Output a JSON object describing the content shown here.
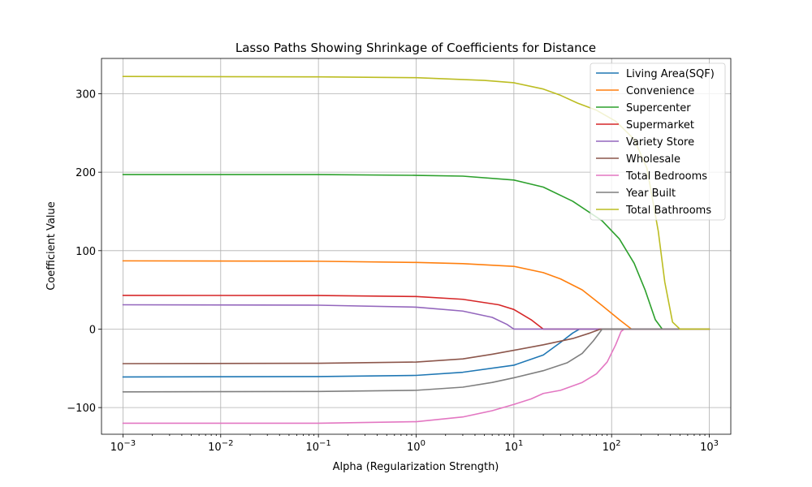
{
  "chart_data": {
    "type": "line",
    "title": "Lasso Paths Showing Shrinkage of Coefficients for Distance",
    "xlabel": "Alpha (Regularization Strength)",
    "ylabel": "Coefficient Value",
    "xscale": "log",
    "xlim": [
      0.000603,
      1658
    ],
    "ylim": [
      -134,
      345
    ],
    "grid": true,
    "legend_position": "top-right",
    "x_ticks": [
      {
        "value": 0.001,
        "base": "10",
        "exp": "−3"
      },
      {
        "value": 0.01,
        "base": "10",
        "exp": "−2"
      },
      {
        "value": 0.1,
        "base": "10",
        "exp": "−1"
      },
      {
        "value": 1,
        "base": "10",
        "exp": "0"
      },
      {
        "value": 10,
        "base": "10",
        "exp": "1"
      },
      {
        "value": 100,
        "base": "10",
        "exp": "2"
      },
      {
        "value": 1000,
        "base": "10",
        "exp": "3"
      }
    ],
    "y_ticks": [
      {
        "value": -100,
        "label": "−100"
      },
      {
        "value": 0,
        "label": "0"
      },
      {
        "value": 100,
        "label": "100"
      },
      {
        "value": 200,
        "label": "200"
      },
      {
        "value": 300,
        "label": "300"
      }
    ],
    "series": [
      {
        "name": "Living Area(SQF)",
        "color": "#1f77b4",
        "points": [
          [
            0.001,
            -61
          ],
          [
            0.1,
            -60.5
          ],
          [
            1,
            -59
          ],
          [
            3,
            -55
          ],
          [
            10,
            -46
          ],
          [
            20,
            -33
          ],
          [
            30,
            -17
          ],
          [
            40,
            -5
          ],
          [
            47,
            0
          ],
          [
            1000,
            0
          ]
        ]
      },
      {
        "name": "Convenience",
        "color": "#ff7f0e",
        "points": [
          [
            0.001,
            87
          ],
          [
            0.1,
            86.5
          ],
          [
            1,
            85
          ],
          [
            3,
            83.5
          ],
          [
            10,
            80
          ],
          [
            20,
            72
          ],
          [
            30,
            64
          ],
          [
            50,
            50
          ],
          [
            80,
            30
          ],
          [
            120,
            12
          ],
          [
            160,
            0
          ],
          [
            1000,
            0
          ]
        ]
      },
      {
        "name": "Supercenter",
        "color": "#2ca02c",
        "points": [
          [
            0.001,
            197
          ],
          [
            0.1,
            197
          ],
          [
            1,
            196
          ],
          [
            3,
            195
          ],
          [
            10,
            190
          ],
          [
            20,
            181
          ],
          [
            40,
            163
          ],
          [
            80,
            138
          ],
          [
            120,
            115
          ],
          [
            170,
            84
          ],
          [
            220,
            50
          ],
          [
            280,
            12
          ],
          [
            330,
            0
          ],
          [
            1000,
            0
          ]
        ]
      },
      {
        "name": "Supermarket",
        "color": "#d62728",
        "points": [
          [
            0.001,
            43
          ],
          [
            0.1,
            42.8
          ],
          [
            1,
            41.5
          ],
          [
            3,
            38
          ],
          [
            7,
            31
          ],
          [
            10,
            25
          ],
          [
            15,
            12
          ],
          [
            20,
            0
          ],
          [
            1000,
            0
          ]
        ]
      },
      {
        "name": "Variety Store",
        "color": "#9467bd",
        "points": [
          [
            0.001,
            31
          ],
          [
            0.1,
            30.5
          ],
          [
            1,
            28
          ],
          [
            3,
            23
          ],
          [
            6,
            15
          ],
          [
            8.5,
            6
          ],
          [
            10,
            0
          ],
          [
            1000,
            0
          ]
        ]
      },
      {
        "name": "Wholesale",
        "color": "#8c564b",
        "points": [
          [
            0.001,
            -44
          ],
          [
            0.1,
            -43.5
          ],
          [
            1,
            -42
          ],
          [
            3,
            -38
          ],
          [
            6,
            -32
          ],
          [
            10,
            -27
          ],
          [
            20,
            -20
          ],
          [
            40,
            -12
          ],
          [
            60,
            -5
          ],
          [
            75,
            -0.5
          ],
          [
            80,
            0
          ],
          [
            1000,
            0
          ]
        ]
      },
      {
        "name": "Total Bedrooms",
        "color": "#e377c2",
        "points": [
          [
            0.001,
            -120
          ],
          [
            0.1,
            -120
          ],
          [
            1,
            -118
          ],
          [
            3,
            -112
          ],
          [
            6,
            -104
          ],
          [
            10,
            -96
          ],
          [
            15,
            -89
          ],
          [
            20,
            -82
          ],
          [
            30,
            -78
          ],
          [
            50,
            -68
          ],
          [
            70,
            -57
          ],
          [
            90,
            -42
          ],
          [
            110,
            -20
          ],
          [
            125,
            -3
          ],
          [
            135,
            0
          ],
          [
            1000,
            0
          ]
        ]
      },
      {
        "name": "Year Built",
        "color": "#7f7f7f",
        "points": [
          [
            0.001,
            -80
          ],
          [
            0.1,
            -79.5
          ],
          [
            1,
            -78
          ],
          [
            3,
            -74
          ],
          [
            6,
            -68
          ],
          [
            10,
            -62
          ],
          [
            20,
            -53
          ],
          [
            35,
            -43
          ],
          [
            50,
            -31
          ],
          [
            65,
            -15
          ],
          [
            80,
            0
          ],
          [
            1000,
            0
          ]
        ]
      },
      {
        "name": "Total Bathrooms",
        "color": "#bcbd22",
        "points": [
          [
            0.001,
            322
          ],
          [
            0.1,
            321.5
          ],
          [
            1,
            320.5
          ],
          [
            5,
            317
          ],
          [
            10,
            314
          ],
          [
            20,
            306
          ],
          [
            30,
            298
          ],
          [
            45,
            288
          ],
          [
            70,
            279
          ],
          [
            110,
            265
          ],
          [
            170,
            242
          ],
          [
            230,
            205
          ],
          [
            300,
            125
          ],
          [
            350,
            60
          ],
          [
            420,
            9
          ],
          [
            500,
            0
          ],
          [
            1000,
            0
          ]
        ]
      }
    ]
  }
}
